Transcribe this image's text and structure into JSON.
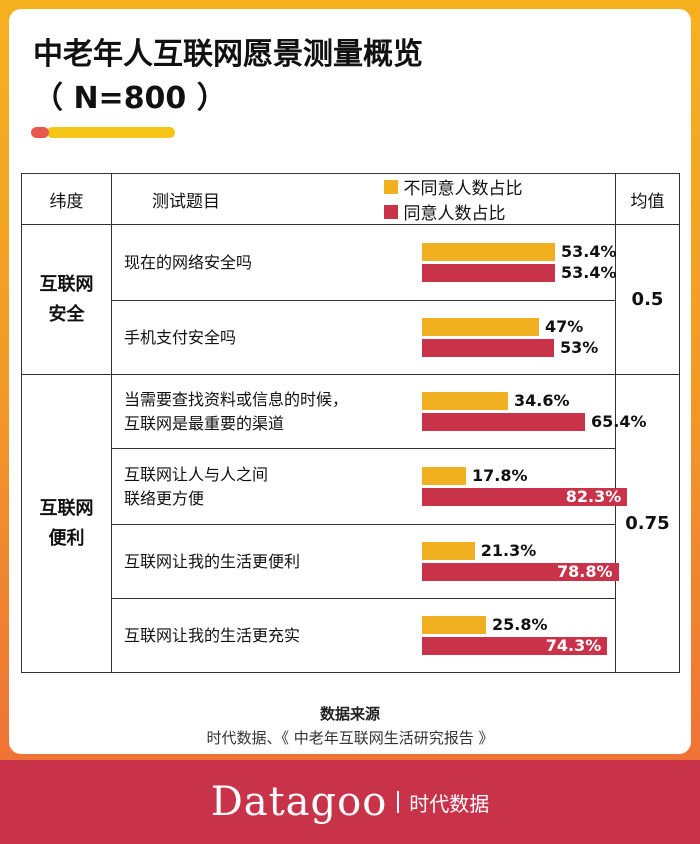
{
  "title_line1": "中老年人互联网愿景测量概览",
  "title_line2": "（ N=800 ）",
  "header": {
    "dimension": "纬度",
    "question": "测试题目",
    "legend_disagree": "不同意人数占比",
    "legend_agree": "同意人数占比",
    "average": "均值"
  },
  "colors": {
    "disagree": "#f0b020",
    "agree": "#c8334a"
  },
  "sections": [
    {
      "dimension": "互联网\n安全",
      "average": "0.5"
    },
    {
      "dimension": "互联网\n便利",
      "average": "0.75"
    }
  ],
  "chart_data": {
    "type": "bar",
    "orientation": "horizontal",
    "unit": "%",
    "categories": [
      "现在的网络安全吗",
      "手机支付安全吗",
      "当需要查找资料或信息的时候，\n互联网是最重要的渠道",
      "互联网让人与人之间\n联络更方便",
      "互联网让我的生活更便利",
      "互联网让我的生活更充实"
    ],
    "series": [
      {
        "name": "不同意人数占比",
        "values": [
          53.4,
          47,
          34.6,
          17.8,
          21.3,
          25.8
        ],
        "labels": [
          "53.4%",
          "47%",
          "34.6%",
          "17.8%",
          "21.3%",
          "25.8%"
        ]
      },
      {
        "name": "同意人数占比",
        "values": [
          53.4,
          53,
          65.4,
          82.3,
          78.8,
          74.3
        ],
        "labels": [
          "53.4%",
          "53%",
          "65.4%",
          "82.3%",
          "78.8%",
          "74.3%"
        ]
      }
    ]
  },
  "source_label": "数据来源",
  "source_text": "时代数据、《 中老年互联网生活研究报告 》",
  "footer": {
    "brand": "Datagoo",
    "brand_cn": "时代数据"
  }
}
